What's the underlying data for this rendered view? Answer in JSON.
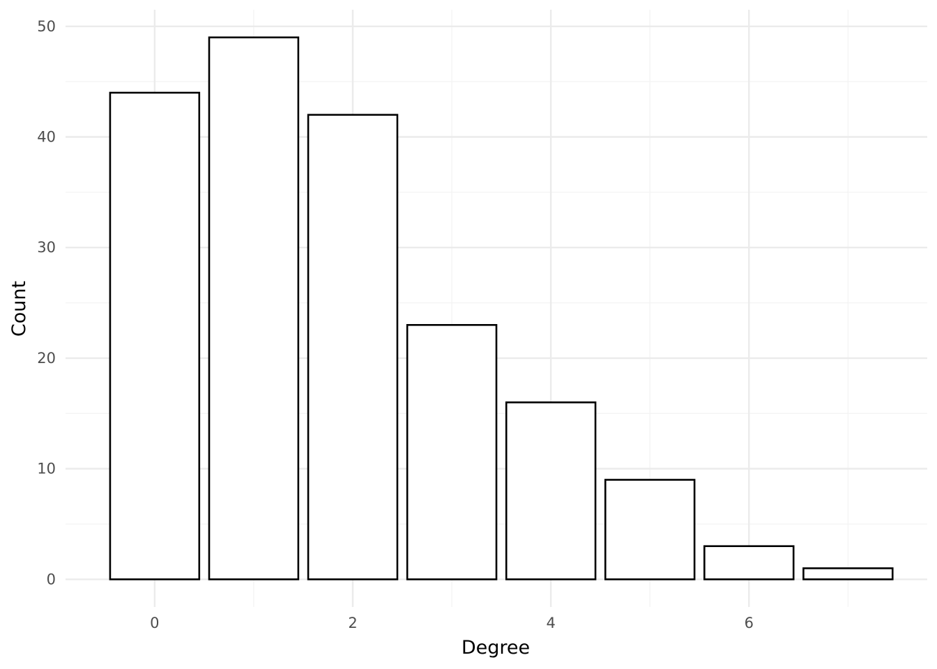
{
  "chart_data": {
    "type": "bar",
    "title": "",
    "xlabel": "Degree",
    "ylabel": "Count",
    "x": [
      0,
      1,
      2,
      3,
      4,
      5,
      6,
      7
    ],
    "values": [
      44,
      49,
      42,
      23,
      16,
      9,
      3,
      1
    ],
    "xlim": [
      -0.9,
      7.8
    ],
    "ylim": [
      -2.5,
      51.5
    ],
    "x_ticks": [
      0,
      2,
      4,
      6
    ],
    "x_tick_labels": [
      "0",
      "2",
      "4",
      "6"
    ],
    "y_ticks": [
      0,
      10,
      20,
      30,
      40,
      50
    ],
    "y_tick_labels": [
      "0",
      "10",
      "20",
      "30",
      "40",
      "50"
    ],
    "grid": true,
    "legend": "none",
    "colors": {
      "bar_fill": "#ffffff",
      "bar_stroke": "#000000",
      "grid_major": "#ebebeb",
      "grid_minor": "#f3f3f3",
      "tick_text": "#4d4d4d",
      "title_text": "#000000"
    }
  }
}
